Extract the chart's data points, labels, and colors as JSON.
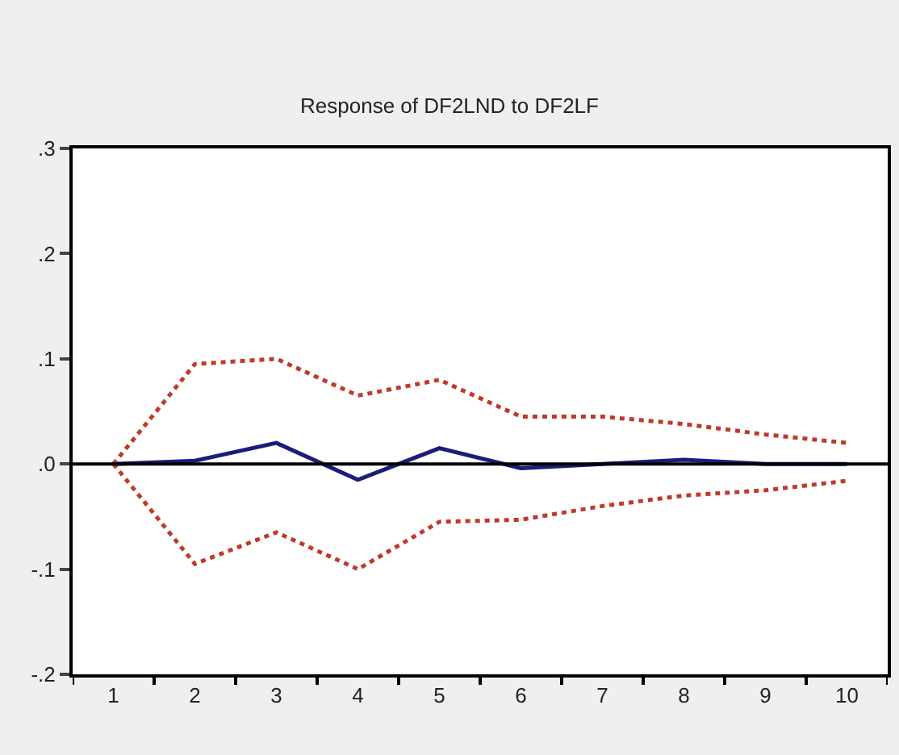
{
  "chart_data": {
    "type": "line",
    "title": "Response of DF2LND to DF2LF",
    "categories": [
      "1",
      "2",
      "3",
      "4",
      "5",
      "6",
      "7",
      "8",
      "9",
      "10"
    ],
    "series": [
      {
        "color": "#1c1c7a",
        "line_style": "solid",
        "values": [
          0,
          0.003,
          0.02,
          -0.015,
          0.015,
          -0.004,
          0,
          0.004,
          0,
          0
        ]
      },
      {
        "color": "#c0392b",
        "line_style": "dotted",
        "values": [
          0,
          0.095,
          0.1,
          0.065,
          0.08,
          0.045,
          0.045,
          0.038,
          0.028,
          0.02
        ]
      },
      {
        "color": "#c0392b",
        "line_style": "dotted",
        "values": [
          0,
          -0.095,
          -0.065,
          -0.1,
          -0.055,
          -0.053,
          -0.04,
          -0.03,
          -0.025,
          -0.016
        ]
      }
    ],
    "ylim": [
      -0.2,
      0.3
    ],
    "yticks": [
      {
        "value": -0.2,
        "label": "-.2"
      },
      {
        "value": -0.1,
        "label": "-.1"
      },
      {
        "value": 0,
        "label": ".0"
      },
      {
        "value": 0.1,
        "label": ".1"
      },
      {
        "value": 0.2,
        "label": ".2"
      },
      {
        "value": 0.3,
        "label": ".3"
      }
    ],
    "ref_lines": [
      {
        "axis": "y",
        "value": 0,
        "color": "#000000",
        "line_style": "solid"
      }
    ],
    "marker": "none"
  }
}
